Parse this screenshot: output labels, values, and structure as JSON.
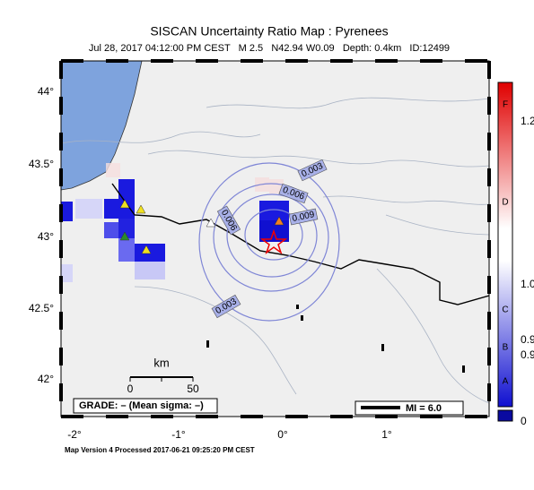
{
  "header": {
    "title": "SISCAN Uncertainty Ratio Map : Pyrenees",
    "subtitle": "Jul 28, 2017 04:12:00 PM CEST   M 2.5   N42.94 W0.09   Depth: 0.4km   ID:12499"
  },
  "map": {
    "lat_labels": [
      "44°",
      "43.5°",
      "43°",
      "42.5°",
      "42°"
    ],
    "lon_labels": [
      "-2°",
      "-1°",
      "0°",
      "1°"
    ],
    "contour_labels": [
      "0.003",
      "0.006",
      "0.009",
      "0.006",
      "0.003"
    ],
    "scale_bar": {
      "unit": "km",
      "start": "0",
      "end": "50"
    },
    "grade": "GRADE: – (Mean sigma: –)",
    "mi": "MI = 6.0"
  },
  "colorbar": {
    "letters": [
      "F",
      "D",
      "C",
      "B",
      "A"
    ],
    "values": [
      "1.2",
      "1.0",
      "0.9",
      "0.9",
      "0"
    ]
  },
  "footer": "Map Version 4 Processed 2017-06-21 09:25:20 PM CEST"
}
